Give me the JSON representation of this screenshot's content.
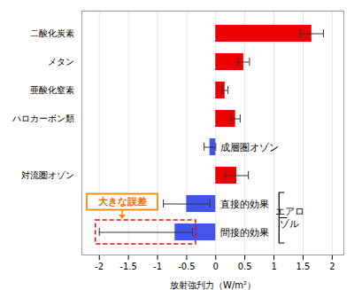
{
  "chart_data": {
    "type": "bar",
    "orientation": "horizontal",
    "categories": [
      "二酸化炭素",
      "メタン",
      "亜酸化窒素",
      "ハロカーボン類",
      null,
      "対流圏オゾン",
      null,
      null
    ],
    "values": [
      1.65,
      0.48,
      0.16,
      0.34,
      -0.1,
      0.36,
      -0.5,
      -0.7
    ],
    "colors": [
      "#ee0000",
      "#ee0000",
      "#ee0000",
      "#ee0000",
      "#4455ee",
      "#ee0000",
      "#4455ee",
      "#4455ee"
    ],
    "errors": [
      0.2,
      0.1,
      0.05,
      0.08,
      0.1,
      0.2,
      0.4,
      [
        1.3,
        0.3
      ]
    ],
    "xlabel": "放射強刋力（W/m²）",
    "xlim": [
      -2.3,
      2.2
    ],
    "xticks": [
      -2,
      -1.5,
      -1,
      -0.5,
      0,
      0.5,
      1,
      1.5,
      2
    ],
    "grid": true,
    "annotations": [
      {
        "text": "成層圏オゾン",
        "category": 4
      },
      {
        "text": "直接的効果",
        "category": 6
      },
      {
        "text": "間接的効果",
        "category": 7
      },
      {
        "text": [
          "エアロ",
          "ゾル"
        ],
        "bracket": [
          6,
          7
        ]
      },
      {
        "text": "大きな誤差",
        "arrow_to": 7
      }
    ]
  }
}
